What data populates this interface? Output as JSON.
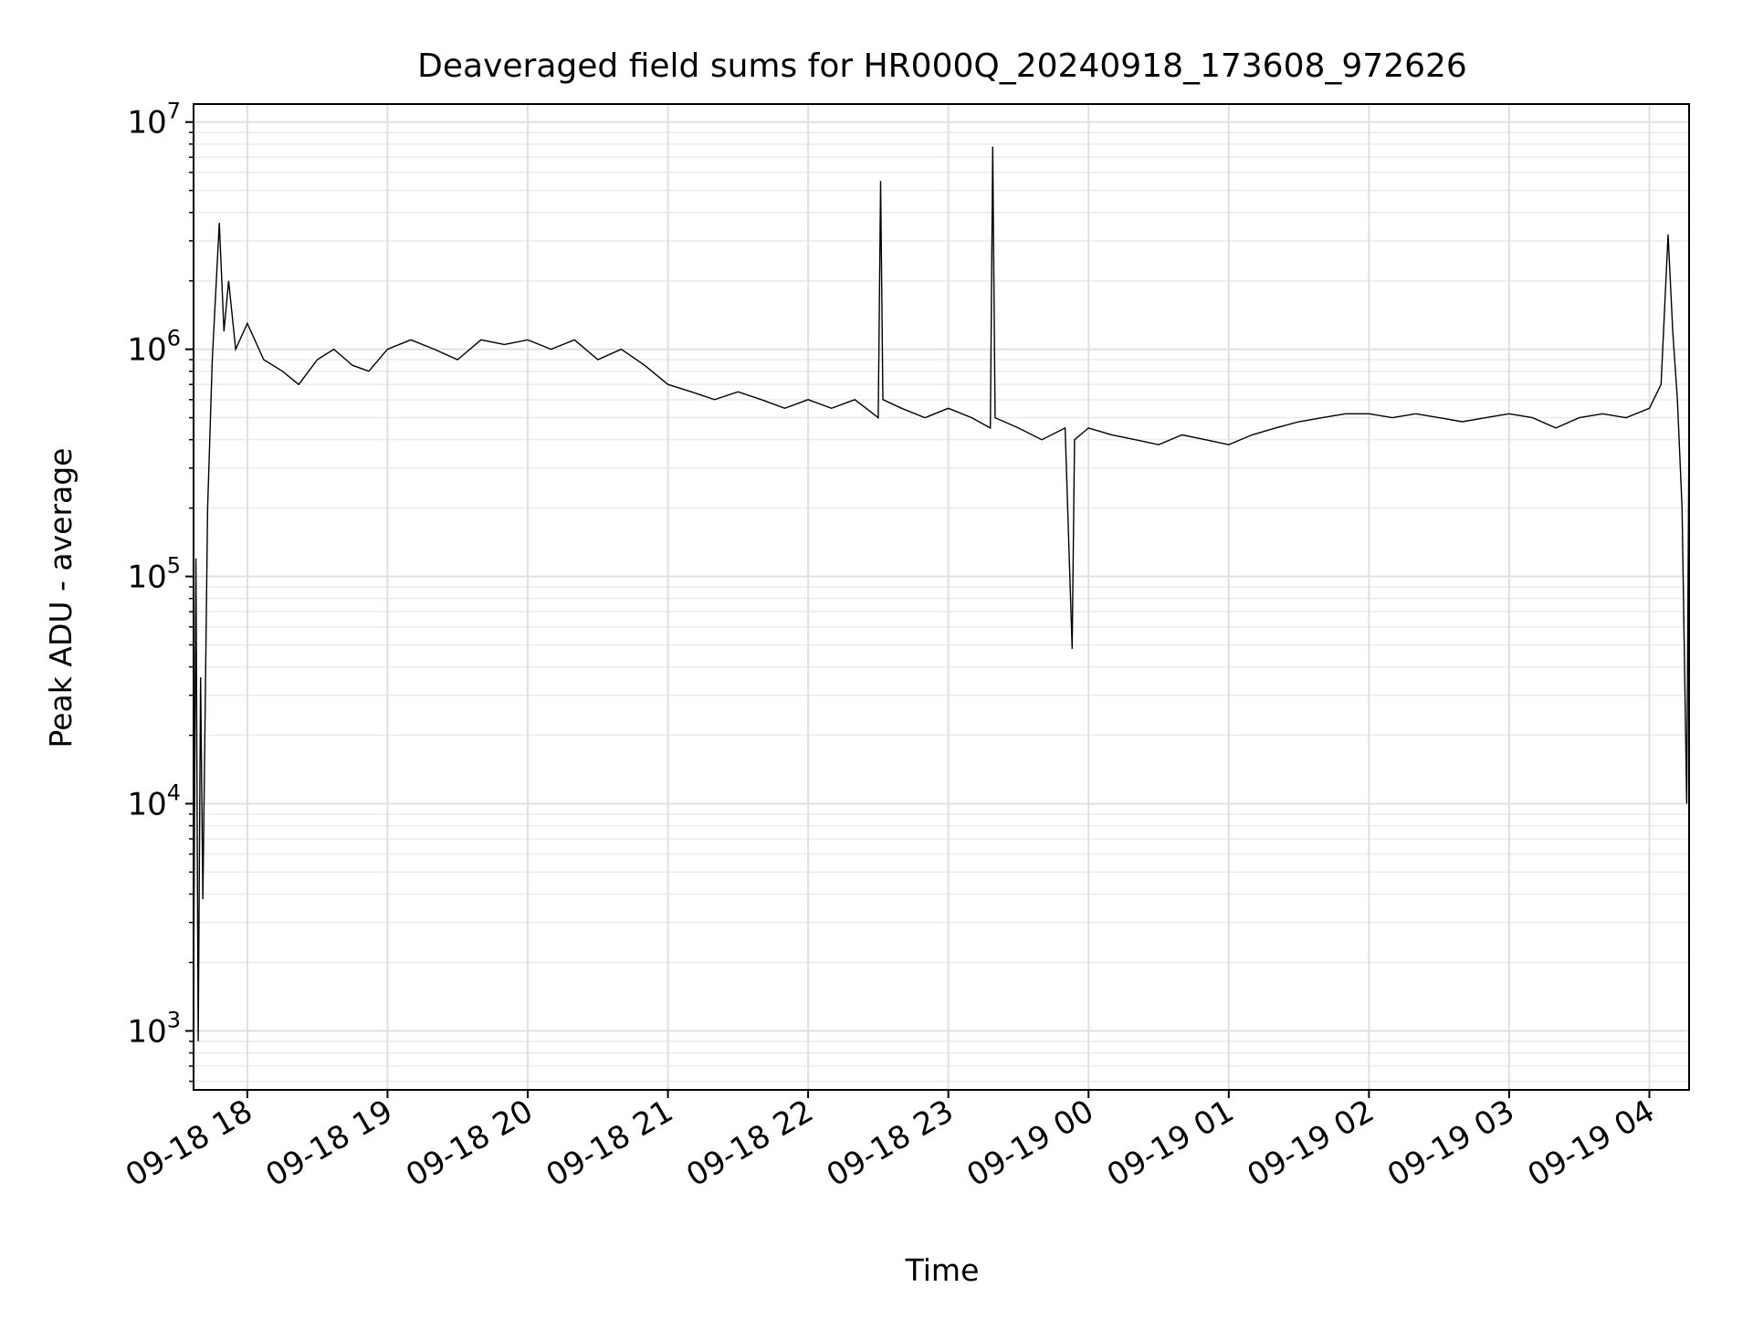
{
  "chart_data": {
    "type": "line",
    "title": "Deaveraged field sums for HR000Q_20240918_173608_972626",
    "xlabel": "Time",
    "ylabel": "Peak ADU - average",
    "yscale": "log",
    "ylim": [
      550,
      12000000
    ],
    "xlim": [
      "2024-09-18 17:37",
      "2024-09-19 04:17"
    ],
    "grid": true,
    "legend": "none",
    "line_color": "#000000",
    "x_ticks": [
      "2024-09-18 18:00",
      "2024-09-18 19:00",
      "2024-09-18 20:00",
      "2024-09-18 21:00",
      "2024-09-18 22:00",
      "2024-09-18 23:00",
      "2024-09-19 00:00",
      "2024-09-19 01:00",
      "2024-09-19 02:00",
      "2024-09-19 03:00",
      "2024-09-19 04:00"
    ],
    "x_tick_labels": [
      "09-18 18",
      "09-18 19",
      "09-18 20",
      "09-18 21",
      "09-18 22",
      "09-18 23",
      "09-19 00",
      "09-19 01",
      "09-19 02",
      "09-19 03",
      "09-19 04"
    ],
    "y_ticks": [
      1000,
      10000,
      100000,
      1000000,
      10000000
    ],
    "y_tick_bases": [
      "10",
      "10",
      "10",
      "10",
      "10"
    ],
    "y_tick_exponents": [
      "3",
      "4",
      "5",
      "6",
      "7"
    ],
    "series": [
      {
        "x": [
          "2024-09-18 17:37",
          "2024-09-18 17:38",
          "2024-09-18 17:39",
          "2024-09-18 17:40",
          "2024-09-18 17:41",
          "2024-09-18 17:43",
          "2024-09-18 17:45",
          "2024-09-18 17:48",
          "2024-09-18 17:50",
          "2024-09-18 17:52",
          "2024-09-18 17:55",
          "2024-09-18 18:00",
          "2024-09-18 18:07",
          "2024-09-18 18:15",
          "2024-09-18 18:22",
          "2024-09-18 18:30",
          "2024-09-18 18:37",
          "2024-09-18 18:45",
          "2024-09-18 18:52",
          "2024-09-18 19:00",
          "2024-09-18 19:10",
          "2024-09-18 19:20",
          "2024-09-18 19:30",
          "2024-09-18 19:40",
          "2024-09-18 19:50",
          "2024-09-18 20:00",
          "2024-09-18 20:10",
          "2024-09-18 20:20",
          "2024-09-18 20:30",
          "2024-09-18 20:40",
          "2024-09-18 20:50",
          "2024-09-18 21:00",
          "2024-09-18 21:10",
          "2024-09-18 21:20",
          "2024-09-18 21:30",
          "2024-09-18 21:40",
          "2024-09-18 21:50",
          "2024-09-18 22:00",
          "2024-09-18 22:10",
          "2024-09-18 22:20",
          "2024-09-18 22:30",
          "2024-09-18 22:31",
          "2024-09-18 22:32",
          "2024-09-18 22:40",
          "2024-09-18 22:50",
          "2024-09-18 23:00",
          "2024-09-18 23:10",
          "2024-09-18 23:18",
          "2024-09-18 23:19",
          "2024-09-18 23:20",
          "2024-09-18 23:30",
          "2024-09-18 23:40",
          "2024-09-18 23:50",
          "2024-09-18 23:53",
          "2024-09-18 23:54",
          "2024-09-19 00:00",
          "2024-09-19 00:10",
          "2024-09-19 00:20",
          "2024-09-19 00:30",
          "2024-09-19 00:40",
          "2024-09-19 00:50",
          "2024-09-19 01:00",
          "2024-09-19 01:10",
          "2024-09-19 01:20",
          "2024-09-19 01:30",
          "2024-09-19 01:40",
          "2024-09-19 01:50",
          "2024-09-19 02:00",
          "2024-09-19 02:10",
          "2024-09-19 02:20",
          "2024-09-19 02:30",
          "2024-09-19 02:40",
          "2024-09-19 02:50",
          "2024-09-19 03:00",
          "2024-09-19 03:10",
          "2024-09-19 03:20",
          "2024-09-19 03:30",
          "2024-09-19 03:40",
          "2024-09-19 03:50",
          "2024-09-19 04:00",
          "2024-09-19 04:05",
          "2024-09-19 04:08",
          "2024-09-19 04:10",
          "2024-09-19 04:12",
          "2024-09-19 04:14",
          "2024-09-19 04:16",
          "2024-09-19 04:17"
        ],
        "y": [
          1500,
          120000,
          900,
          36000,
          3800,
          200000,
          900000,
          3600000,
          1200000,
          2000000,
          1000000,
          1300000,
          900000,
          800000,
          700000,
          900000,
          1000000,
          850000,
          800000,
          1000000,
          1100000,
          1000000,
          900000,
          1100000,
          1050000,
          1100000,
          1000000,
          1100000,
          900000,
          1000000,
          850000,
          700000,
          650000,
          600000,
          650000,
          600000,
          550000,
          600000,
          550000,
          600000,
          500000,
          5500000,
          600000,
          550000,
          500000,
          550000,
          500000,
          450000,
          7800000,
          500000,
          450000,
          400000,
          450000,
          48000,
          400000,
          450000,
          420000,
          400000,
          380000,
          420000,
          400000,
          380000,
          420000,
          450000,
          480000,
          500000,
          520000,
          520000,
          500000,
          520000,
          500000,
          480000,
          500000,
          520000,
          500000,
          450000,
          500000,
          520000,
          500000,
          550000,
          700000,
          3200000,
          1200000,
          600000,
          200000,
          10000,
          500000
        ]
      }
    ]
  }
}
